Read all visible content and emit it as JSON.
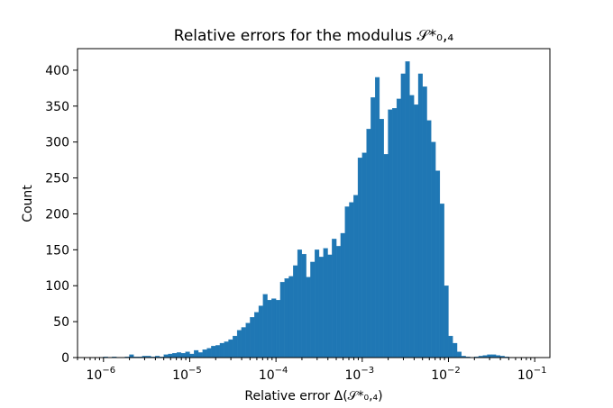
{
  "chart_data": {
    "type": "bar",
    "title": "Relative errors for the modulus 𝒮*₀,₄",
    "xlabel": "Relative error Δ(𝒮*₀,₄)",
    "ylabel": "Count",
    "xscale": "log",
    "xlim": [
      5e-07,
      0.15
    ],
    "ylim": [
      0,
      430
    ],
    "yticks": [
      0,
      50,
      100,
      150,
      200,
      250,
      300,
      350,
      400
    ],
    "xticks": [
      {
        "value": 1e-06,
        "base": "10",
        "exp": "−6"
      },
      {
        "value": 1e-05,
        "base": "10",
        "exp": "−5"
      },
      {
        "value": 0.0001,
        "base": "10",
        "exp": "−4"
      },
      {
        "value": 0.001,
        "base": "10",
        "exp": "−3"
      },
      {
        "value": 0.01,
        "base": "10",
        "exp": "−2"
      },
      {
        "value": 0.1,
        "base": "10",
        "exp": "−1"
      }
    ],
    "bins": {
      "log10_min": -6,
      "log10_max": -1,
      "count": 100
    },
    "counts": [
      1,
      0,
      1,
      0,
      0,
      1,
      4,
      1,
      1,
      2,
      2,
      1,
      2,
      1,
      4,
      5,
      6,
      7,
      6,
      8,
      5,
      10,
      7,
      11,
      13,
      16,
      17,
      20,
      22,
      25,
      30,
      38,
      42,
      48,
      56,
      63,
      72,
      88,
      80,
      82,
      80,
      105,
      110,
      113,
      128,
      150,
      144,
      112,
      133,
      150,
      140,
      152,
      143,
      165,
      155,
      173,
      210,
      216,
      226,
      278,
      285,
      318,
      362,
      390,
      332,
      283,
      345,
      347,
      360,
      395,
      412,
      365,
      352,
      395,
      377,
      330,
      300,
      260,
      214,
      100,
      30,
      20,
      8,
      2,
      1,
      0,
      1,
      2,
      3,
      4,
      4,
      3,
      2,
      1,
      0,
      0,
      0,
      0,
      0,
      0
    ]
  }
}
